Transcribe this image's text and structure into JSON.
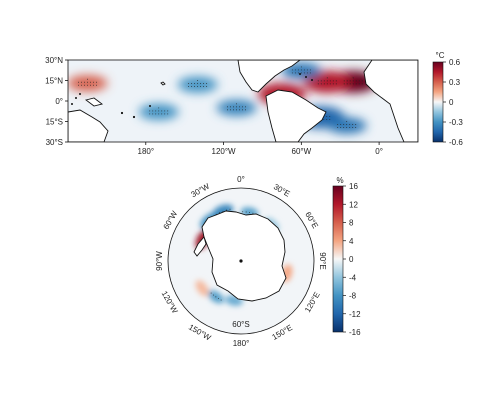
{
  "chart_data": [
    {
      "type": "heatmap",
      "subtype": "map-equirectangular",
      "region": "tropical band",
      "lat_range": [
        -30,
        30
      ],
      "lon_range": [
        -240,
        30
      ],
      "y_ticks": [
        {
          "value": 30,
          "label": "30°N"
        },
        {
          "value": 15,
          "label": "15°N"
        },
        {
          "value": 0,
          "label": "0°"
        },
        {
          "value": -15,
          "label": "15°S"
        },
        {
          "value": -30,
          "label": "30°S"
        }
      ],
      "x_ticks": [
        {
          "value": -180,
          "label": "180°"
        },
        {
          "value": -120,
          "label": "120°W"
        },
        {
          "value": -60,
          "label": "60°W"
        },
        {
          "value": 0,
          "label": "0°"
        }
      ],
      "colorbar": {
        "unit": "°C",
        "range": [
          -0.6,
          0.6
        ],
        "ticks": [
          "0.6",
          "0.3",
          "0",
          "-0.3",
          "-0.6"
        ],
        "colors": [
          "#08306b",
          "#2166ac",
          "#4393c3",
          "#92c5de",
          "#f7f7f7",
          "#f4a582",
          "#d6604d",
          "#b2182b",
          "#67001f"
        ]
      },
      "features": [
        {
          "lon": -20,
          "lat": 14,
          "value": 0.6
        },
        {
          "lon": -40,
          "lat": 14,
          "value": 0.45
        },
        {
          "lon": -75,
          "lat": 5,
          "value": 0.45
        },
        {
          "lon": -225,
          "lat": 13,
          "value": 0.3
        },
        {
          "lon": -140,
          "lat": 12,
          "value": -0.3
        },
        {
          "lon": -110,
          "lat": -5,
          "value": -0.35
        },
        {
          "lon": -170,
          "lat": -8,
          "value": -0.3
        },
        {
          "lon": -45,
          "lat": -12,
          "value": -0.45
        },
        {
          "lon": -25,
          "lat": -18,
          "value": -0.4
        },
        {
          "lon": -60,
          "lat": 22,
          "value": -0.4
        }
      ]
    },
    {
      "type": "heatmap",
      "subtype": "map-south-polar-stereographic",
      "region": "Southern Ocean",
      "lat_limit": -50,
      "lon_ticks": [
        {
          "value": 0,
          "label": "0°"
        },
        {
          "value": 30,
          "label": "30°E"
        },
        {
          "value": 60,
          "label": "60°E"
        },
        {
          "value": 90,
          "label": "90°E"
        },
        {
          "value": 120,
          "label": "120°E"
        },
        {
          "value": 150,
          "label": "150°E"
        },
        {
          "value": 180,
          "label": "180°"
        },
        {
          "value": -150,
          "label": "150°W"
        },
        {
          "value": -120,
          "label": "120°W"
        },
        {
          "value": -90,
          "label": "90°W"
        },
        {
          "value": -60,
          "label": "60°W"
        },
        {
          "value": -30,
          "label": "30°W"
        }
      ],
      "lat_label": "60°S",
      "colorbar": {
        "unit": "%",
        "range": [
          -16,
          16
        ],
        "ticks": [
          "16",
          "12",
          "8",
          "4",
          "0",
          "-4",
          "-8",
          "-12",
          "-16"
        ],
        "colors": [
          "#08306b",
          "#2166ac",
          "#4393c3",
          "#92c5de",
          "#f7f7f7",
          "#f4a582",
          "#d6604d",
          "#b2182b",
          "#67001f"
        ]
      },
      "features": [
        {
          "lon": -60,
          "lat": -66,
          "value": 13
        },
        {
          "lon": -38,
          "lat": -62,
          "value": -8
        },
        {
          "lon": -20,
          "lat": -61,
          "value": -9
        },
        {
          "lon": 10,
          "lat": -63,
          "value": -7
        },
        {
          "lon": 40,
          "lat": -64,
          "value": -4
        },
        {
          "lon": 105,
          "lat": -64,
          "value": 4
        },
        {
          "lon": -170,
          "lat": -68,
          "value": -6
        },
        {
          "lon": -145,
          "lat": -66,
          "value": -7
        },
        {
          "lon": -125,
          "lat": -64,
          "value": 3
        }
      ]
    }
  ]
}
